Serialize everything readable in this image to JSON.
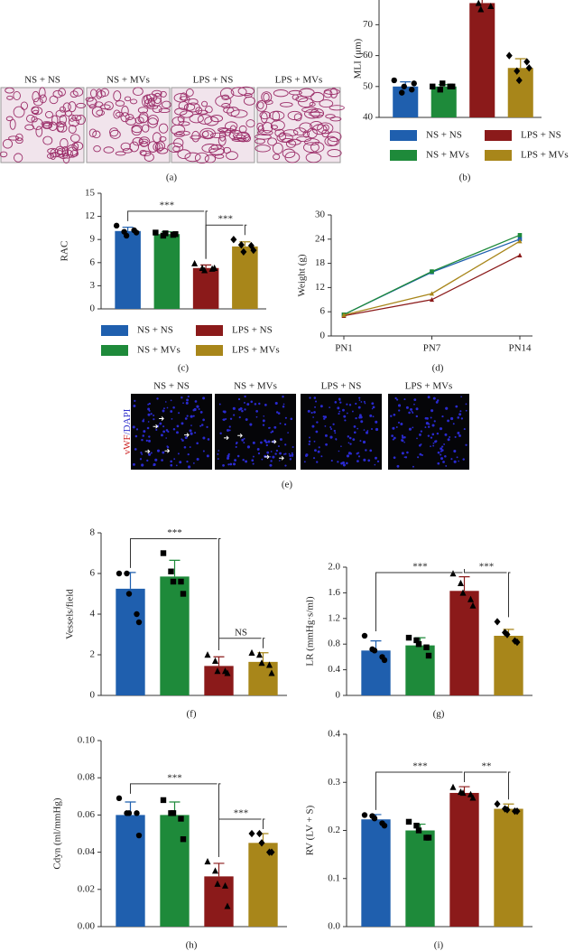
{
  "figure_a": {
    "labels": [
      "NS + NS",
      "NS + MVs",
      "LPS + NS",
      "LPS + MVs"
    ],
    "caption": "(a)"
  },
  "figure_e": {
    "labels": [
      "NS + NS",
      "NS + MVs",
      "LPS + NS",
      "LPS + MVs"
    ],
    "stain_parts": [
      "vWF",
      "/DAPI"
    ],
    "caption": "(e)"
  },
  "chart_data": [
    {
      "type": "bar",
      "caption": "(b)",
      "ylabel": "MLI (μm)",
      "ylim": [
        40,
        78
      ],
      "yticks": [
        40,
        50,
        60,
        70
      ],
      "categories": [
        "NS + NS",
        "NS + MVs",
        "LPS + NS",
        "LPS + MVs"
      ],
      "legend": true,
      "colors": [
        "#1f5fae",
        "#1e8a3a",
        "#8b1a1a",
        "#a8861a"
      ],
      "markers": [
        "circle",
        "square",
        "triangle",
        "diamond"
      ],
      "values": [
        50,
        50,
        77,
        56
      ],
      "errors": [
        1.5,
        0.6,
        2.2,
        3
      ],
      "points": [
        [
          52,
          48,
          50,
          49,
          51
        ],
        [
          50,
          49,
          51,
          50,
          50
        ],
        [
          80,
          77,
          75,
          79,
          76
        ],
        [
          60,
          55,
          52,
          58,
          56
        ]
      ]
    },
    {
      "type": "bar",
      "caption": "(c)",
      "ylabel": "RAC",
      "ylim": [
        0,
        15
      ],
      "yticks": [
        0,
        3,
        6,
        9,
        12,
        15
      ],
      "categories": [
        "NS + NS",
        "NS + MVs",
        "LPS + NS",
        "LPS + MVs"
      ],
      "legend": true,
      "colors": [
        "#1f5fae",
        "#1e8a3a",
        "#8b1a1a",
        "#a8861a"
      ],
      "markers": [
        "circle",
        "square",
        "triangle",
        "diamond"
      ],
      "values": [
        10.1,
        9.7,
        5.3,
        8.1
      ],
      "errors": [
        0.5,
        0.3,
        0.4,
        0.6
      ],
      "points": [
        [
          10.8,
          10,
          9.5,
          10.2,
          9.9
        ],
        [
          9.9,
          9.5,
          9.8,
          9.6,
          9.7
        ],
        [
          5.9,
          5.3,
          5.0,
          5.2,
          5.3
        ],
        [
          9.0,
          8.3,
          7.4,
          8.2,
          7.6
        ]
      ],
      "brackets": [
        {
          "from": 0,
          "to": 2,
          "label": "***"
        },
        {
          "from": 2,
          "to": 3,
          "label": "***"
        }
      ]
    },
    {
      "type": "line",
      "caption": "(d)",
      "ylabel": "Weight (g)",
      "ylim": [
        0,
        30
      ],
      "yticks": [
        0,
        6,
        12,
        18,
        24,
        30
      ],
      "categories": [
        "PN1",
        "PN7",
        "PN14"
      ],
      "series": [
        {
          "color": "#1f5fae",
          "marker": "square",
          "values": [
            5.3,
            15.8,
            24
          ]
        },
        {
          "color": "#1e8a3a",
          "marker": "square",
          "values": [
            5.3,
            16,
            25
          ]
        },
        {
          "color": "#8b1a1a",
          "marker": "triangle",
          "values": [
            5.0,
            9,
            20
          ]
        },
        {
          "color": "#a8861a",
          "marker": "triangle",
          "values": [
            5.2,
            10.5,
            23.5
          ]
        }
      ]
    },
    {
      "type": "bar",
      "caption": "(f)",
      "ylabel": "Vessels/field",
      "ylim": [
        0,
        8
      ],
      "yticks": [
        0,
        2,
        4,
        6,
        8
      ],
      "colors": [
        "#1f5fae",
        "#1e8a3a",
        "#8b1a1a",
        "#a8861a"
      ],
      "markers": [
        "circle",
        "square",
        "triangle",
        "triangle"
      ],
      "values": [
        5.25,
        5.85,
        1.45,
        1.65
      ],
      "errors": [
        0.8,
        0.8,
        0.45,
        0.45
      ],
      "points": [
        [
          6,
          6,
          5,
          4,
          3.6
        ],
        [
          7,
          6.1,
          5.6,
          5.6,
          5
        ],
        [
          2,
          1.7,
          1.2,
          1.2,
          1.1
        ],
        [
          2.1,
          2,
          1.6,
          1.5,
          1.1
        ]
      ],
      "brackets": [
        {
          "from": 0,
          "to": 2,
          "label": "***"
        },
        {
          "from": 2,
          "to": 3,
          "label": "NS"
        }
      ]
    },
    {
      "type": "bar",
      "caption": "(g)",
      "ylabel": "LR (mmHg·s/ml)",
      "ylim": [
        0,
        2.0
      ],
      "yticks": [
        0,
        0.4,
        0.8,
        1.2,
        1.6,
        {
          "value": 2,
          "label": "2.0"
        }
      ],
      "colors": [
        "#1f5fae",
        "#1e8a3a",
        "#8b1a1a",
        "#a8861a"
      ],
      "markers": [
        "circle",
        "square",
        "triangle",
        "diamond"
      ],
      "values": [
        0.7,
        0.78,
        1.63,
        0.93
      ],
      "errors": [
        0.15,
        0.12,
        0.22,
        0.1
      ],
      "points": [
        [
          0.93,
          0.72,
          0.7,
          0.6,
          0.55
        ],
        [
          0.9,
          0.86,
          0.8,
          0.75,
          0.62
        ],
        [
          1.9,
          1.75,
          1.6,
          1.5,
          1.4
        ],
        [
          1.15,
          0.98,
          0.95,
          0.85,
          0.83
        ]
      ],
      "brackets": [
        {
          "from": 0,
          "to": 2,
          "label": "***"
        },
        {
          "from": 2,
          "to": 3,
          "label": "***"
        }
      ]
    },
    {
      "type": "bar",
      "caption": "(h)",
      "ylabel": "Cdyn (ml/mmHg)",
      "ylim": [
        0,
        0.1
      ],
      "yticks": [
        {
          "value": 0,
          "label": "0.00"
        },
        {
          "value": 0.02,
          "label": "0.02"
        },
        {
          "value": 0.04,
          "label": "0.04"
        },
        {
          "value": 0.06,
          "label": "0.06"
        },
        {
          "value": 0.08,
          "label": "0.08"
        },
        {
          "value": 0.1,
          "label": "0.10"
        }
      ],
      "colors": [
        "#1f5fae",
        "#1e8a3a",
        "#8b1a1a",
        "#a8861a"
      ],
      "markers": [
        "circle",
        "square",
        "triangle",
        "diamond"
      ],
      "values": [
        0.06,
        0.06,
        0.027,
        0.045
      ],
      "errors": [
        0.007,
        0.007,
        0.007,
        0.005
      ],
      "points": [
        [
          0.069,
          0.061,
          0.061,
          0.061,
          0.049
        ],
        [
          0.068,
          0.061,
          0.061,
          0.058,
          0.047
        ],
        [
          0.035,
          0.03,
          0.023,
          0.022,
          0.011
        ],
        [
          0.05,
          0.05,
          0.045,
          0.04,
          0.04
        ]
      ],
      "brackets": [
        {
          "from": 0,
          "to": 2,
          "label": "***"
        },
        {
          "from": 2,
          "to": 3,
          "label": "***"
        }
      ]
    },
    {
      "type": "bar",
      "caption": "(i)",
      "ylabel": "RV (LV + S)",
      "ylim": [
        0,
        0.4
      ],
      "yticks": [
        {
          "value": 0,
          "label": "0.0"
        },
        0.1,
        0.2,
        0.3,
        0.4
      ],
      "colors": [
        "#1f5fae",
        "#1e8a3a",
        "#8b1a1a",
        "#a8861a"
      ],
      "markers": [
        "circle",
        "square",
        "triangle",
        "diamond"
      ],
      "values": [
        0.223,
        0.2,
        0.278,
        0.245
      ],
      "errors": [
        0.01,
        0.013,
        0.013,
        0.01
      ],
      "points": [
        [
          0.232,
          0.23,
          0.225,
          0.215,
          0.21
        ],
        [
          0.218,
          0.21,
          0.2,
          0.185,
          0.185
        ],
        [
          0.29,
          0.28,
          0.278,
          0.275,
          0.268
        ],
        [
          0.255,
          0.245,
          0.243,
          0.24,
          0.24
        ]
      ],
      "brackets": [
        {
          "from": 0,
          "to": 2,
          "label": "***"
        },
        {
          "from": 2,
          "to": 3,
          "label": "**"
        }
      ]
    }
  ]
}
